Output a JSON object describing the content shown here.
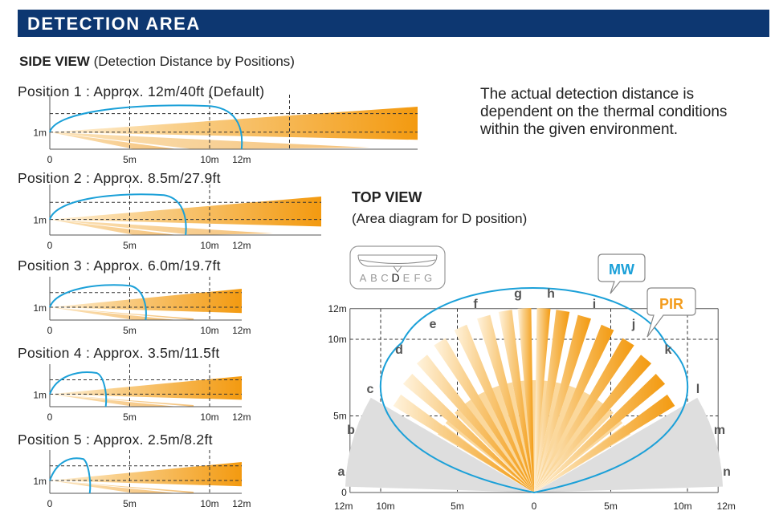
{
  "header": {
    "title": "DETECTION AREA"
  },
  "side_view": {
    "title": "SIDE VIEW",
    "subtitle": " (Detection Distance by Positions)",
    "height_label": "1m",
    "positions": [
      {
        "label": "Position 1 : Approx. 12m/40ft (Default)",
        "range_m": 12
      },
      {
        "label": "Position 2 : Approx. 8.5m/27.9ft",
        "range_m": 8.5
      },
      {
        "label": "Position 3 : Approx. 6.0m/19.7ft",
        "range_m": 6.0
      },
      {
        "label": "Position 4 : Approx. 3.5m/11.5ft",
        "range_m": 3.5
      },
      {
        "label": "Position 5 : Approx. 2.5m/8.2ft",
        "range_m": 2.5
      }
    ],
    "x_ticks": [
      "0",
      "5m",
      "10m",
      "12m"
    ]
  },
  "note": "The actual detection distance is dependent on the thermal conditions within the given environment.",
  "top_view": {
    "title": "TOP VIEW",
    "subtitle": "(Area diagram for D position)",
    "selector_letters": [
      "A",
      "B",
      "C",
      "D",
      "E",
      "F",
      "G"
    ],
    "selected_letter": "D",
    "mw_label": "MW",
    "pir_label": "PIR",
    "y_ticks": [
      "12m",
      "10m",
      "5m",
      "0"
    ],
    "x_ticks": [
      "12m",
      "10m",
      "5m",
      "0",
      "5m",
      "10m",
      "12m"
    ],
    "zone_letters": [
      "a",
      "b",
      "c",
      "d",
      "e",
      "f",
      "g",
      "h",
      "i",
      "j",
      "k",
      "l",
      "m",
      "n"
    ]
  },
  "colors": {
    "banner": "#0d3771",
    "orange": "#f39c1c",
    "light_orange": "#f8c878",
    "gray": "#dcdcdc",
    "mw_blue": "#1ba0d8"
  }
}
